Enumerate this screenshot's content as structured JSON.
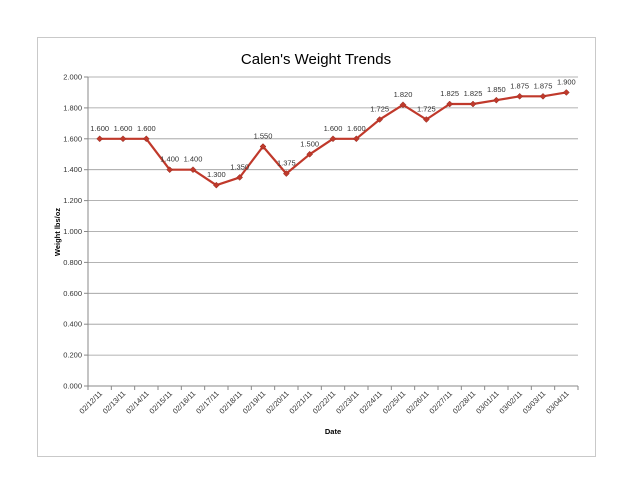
{
  "chart_data": {
    "type": "line",
    "title": "Calen's Weight Trends",
    "xlabel": "Date",
    "ylabel": "Weight lbs/oz",
    "ylim": [
      0,
      2
    ],
    "yticks": [
      "0.000",
      "0.200",
      "0.400",
      "0.600",
      "0.800",
      "1.000",
      "1.200",
      "1.400",
      "1.600",
      "1.800",
      "2.000"
    ],
    "grid": true,
    "legend": "none",
    "color": "#c0392b",
    "categories": [
      "02/12/11",
      "02/13/11",
      "02/14/11",
      "02/15/11",
      "02/16/11",
      "02/17/11",
      "02/18/11",
      "02/19/11",
      "02/20/11",
      "02/21/11",
      "02/22/11",
      "02/23/11",
      "02/24/11",
      "02/25/11",
      "02/26/11",
      "02/27/11",
      "02/28/11",
      "03/01/11",
      "03/02/11",
      "03/03/11",
      "03/04/11"
    ],
    "values": [
      1.6,
      1.6,
      1.6,
      1.4,
      1.4,
      1.3,
      1.35,
      1.55,
      1.375,
      1.5,
      1.6,
      1.6,
      1.725,
      1.82,
      1.725,
      1.825,
      1.825,
      1.85,
      1.875,
      1.875,
      1.9
    ],
    "value_labels": [
      "1.600",
      "1.600",
      "1.600",
      "1.400",
      "1.400",
      "1.300",
      "1.350",
      "1.550",
      "1.375",
      "1.500",
      "1.600",
      "1.600",
      "1.725",
      "1.820",
      "1.725",
      "1.825",
      "1.825",
      "1.850",
      "1.875",
      "1.875",
      "1.900"
    ]
  }
}
